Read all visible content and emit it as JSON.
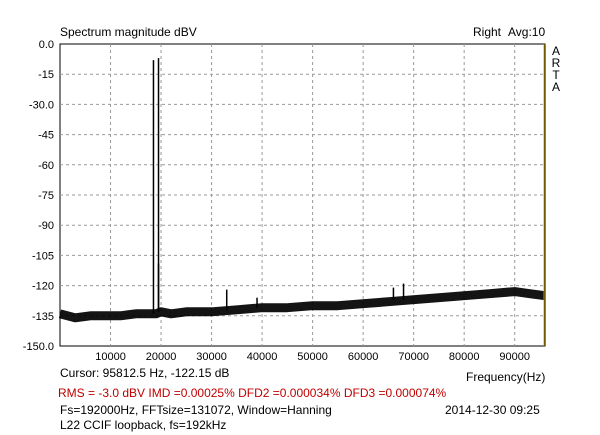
{
  "header": {
    "title": "Spectrum magnitude dBV",
    "channel": "Right",
    "average": "Avg:10",
    "brand_letters": [
      "A",
      "R",
      "T",
      "A"
    ]
  },
  "footer": {
    "cursor": "Cursor: 95812.5 Hz, -122.15 dB",
    "x_unit": "Frequency(Hz)",
    "measurements": "RMS =  -3.0 dBV   IMD =0.00025%  DFD2 =0.000034%  DFD3 =0.000074%",
    "setup": "Fs=192000Hz, FFTsize=131072, Window=Hanning",
    "datetime": "2014-12-30  09:25",
    "note": "L22 CCIF loopback, fs=192kHz"
  },
  "colors": {
    "plot_bg": "#ffffff",
    "grid": "#9a9a9a",
    "trace": "#000000",
    "measurement_text": "#c00000",
    "cursor_line": "#d4a000"
  },
  "chart_data": {
    "type": "line",
    "title": "Spectrum magnitude dBV",
    "xlabel": "Frequency(Hz)",
    "ylabel": "",
    "xlim": [
      0,
      96000
    ],
    "ylim": [
      -150,
      0
    ],
    "x_ticks": [
      10000,
      20000,
      30000,
      40000,
      50000,
      60000,
      70000,
      80000,
      90000
    ],
    "y_ticks": [
      0,
      -15,
      -30,
      -45,
      -60,
      -75,
      -90,
      -105,
      -120,
      -135,
      -150
    ],
    "y_tick_labels": [
      "0.0",
      "-15",
      "-30.0",
      "-45",
      "-60",
      "-75",
      "-90",
      "-105",
      "-120",
      "-135",
      "-150.0"
    ],
    "grid": true,
    "series": [
      {
        "x": [
          0,
          3000,
          6000,
          9000,
          12000,
          15000,
          18000,
          19000,
          20000,
          22000,
          25000,
          30000,
          35000,
          40000,
          45000,
          50000,
          55000,
          60000,
          65000,
          70000,
          75000,
          80000,
          85000,
          90000,
          93000,
          96000
        ],
        "y": [
          -134,
          -136,
          -135,
          -135,
          -135,
          -134,
          -134,
          -134,
          -133,
          -134,
          -133,
          -133,
          -132,
          -131,
          -131,
          -130,
          -130,
          -129,
          -128,
          -127,
          -126,
          -125,
          -124,
          -123,
          -124,
          -125
        ]
      }
    ],
    "peaks": [
      {
        "x": 18500,
        "y": -8
      },
      {
        "x": 19500,
        "y": -7
      },
      {
        "x": 19500,
        "y": -109
      },
      {
        "x": 33000,
        "y": -122
      },
      {
        "x": 39000,
        "y": -126
      },
      {
        "x": 66000,
        "y": -121
      },
      {
        "x": 68000,
        "y": -119
      }
    ],
    "cursor_x": 95812.5
  }
}
